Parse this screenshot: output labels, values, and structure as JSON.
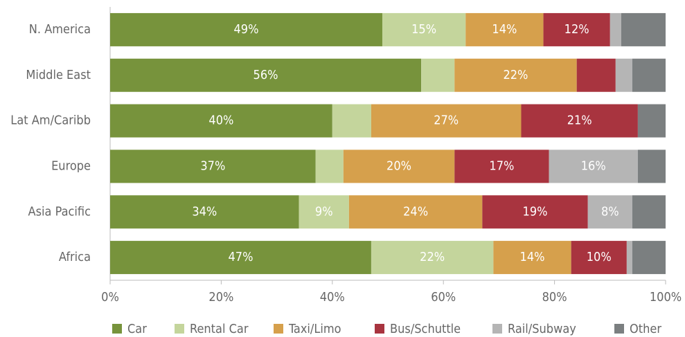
{
  "chart_data": {
    "type": "stacked-barh",
    "categories": [
      "N. America",
      "Middle East",
      "Lat Am/Caribb",
      "Europe",
      "Asia Pacific",
      "Africa"
    ],
    "series": [
      {
        "name": "Car",
        "color": "#77933c",
        "values": [
          49,
          56,
          40,
          37,
          34,
          47
        ],
        "value_labels": [
          "49%",
          "56%",
          "40%",
          "37%",
          "34%",
          "47%"
        ]
      },
      {
        "name": "Rental Car",
        "color": "#c4d59c",
        "values": [
          15,
          6,
          7,
          5,
          9,
          22
        ],
        "value_labels": [
          "15%",
          null,
          null,
          null,
          "9%",
          "22%"
        ]
      },
      {
        "name": "Taxi/Limo",
        "color": "#d6a04c",
        "values": [
          14,
          22,
          27,
          20,
          24,
          14
        ],
        "value_labels": [
          "14%",
          "22%",
          "27%",
          "20%",
          "24%",
          "14%"
        ]
      },
      {
        "name": "Bus/Schuttle",
        "color": "#a8343f",
        "values": [
          12,
          7,
          21,
          17,
          19,
          10
        ],
        "value_labels": [
          "12%",
          null,
          "21%",
          "17%",
          "19%",
          "10%"
        ]
      },
      {
        "name": "Rail/Subway",
        "color": "#b5b5b5",
        "values": [
          2,
          3,
          0,
          16,
          8,
          1
        ],
        "value_labels": [
          null,
          null,
          null,
          "16%",
          "8%",
          null
        ]
      },
      {
        "name": "Other",
        "color": "#7b7f80",
        "values": [
          8,
          6,
          5,
          5,
          6,
          6
        ],
        "value_labels": [
          null,
          null,
          null,
          null,
          null,
          null
        ]
      }
    ],
    "xlim": [
      0,
      100
    ],
    "xticks": [
      {
        "value": 0,
        "label": "0%"
      },
      {
        "value": 20,
        "label": "20%"
      },
      {
        "value": 40,
        "label": "40%"
      },
      {
        "value": 60,
        "label": "60%"
      },
      {
        "value": 80,
        "label": "80%"
      },
      {
        "value": 100,
        "label": "100%"
      }
    ]
  }
}
